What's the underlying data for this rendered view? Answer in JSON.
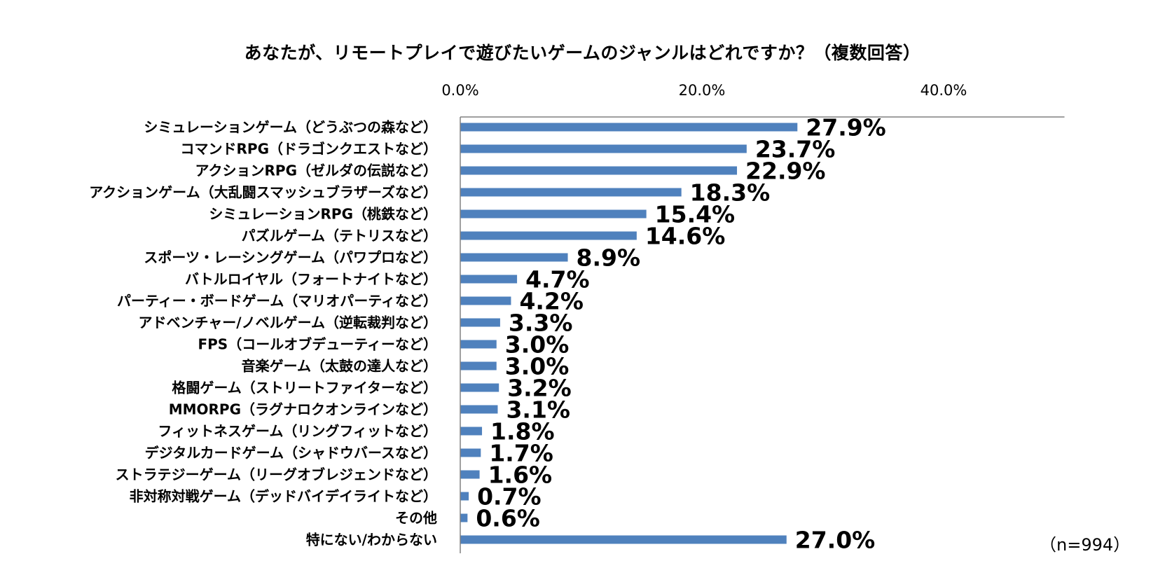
{
  "chart_data": {
    "type": "bar",
    "orientation": "horizontal",
    "title": "あなたが、リモートプレイで遊びたいゲームのジャンルはどれですか？（複数回答）",
    "xlim": [
      0,
      50
    ],
    "x_ticks": [
      0,
      20,
      40
    ],
    "x_tick_labels": [
      "0.0%",
      "20.0%",
      "40.0%"
    ],
    "categories": [
      "シミュレーションゲーム（どうぶつの森など）",
      "コマンドRPG（ドラゴンクエストなど）",
      "アクションRPG（ゼルダの伝説など）",
      "アクションゲーム（大乱闘スマッシュブラザーズなど）",
      "シミュレーションRPG（桃鉄など）",
      "パズルゲーム（テトリスなど）",
      "スポーツ・レーシングゲーム（パワプロなど）",
      "バトルロイヤル（フォートナイトなど）",
      "パーティー・ボードゲーム（マリオパーティなど）",
      "アドベンチャー/ノベルゲーム（逆転裁判など）",
      "FPS（コールオブデューティーなど）",
      "音楽ゲーム（太鼓の達人など）",
      "格闘ゲーム（ストリートファイターなど）",
      "MMORPG（ラグナロクオンラインなど）",
      "フィットネスゲーム（リングフィットなど）",
      "デジタルカードゲーム（シャドウバースなど）",
      "ストラテジーゲーム（リーグオブレジェンドなど）",
      "非対称対戦ゲーム（デッドバイデイライトなど）",
      "その他",
      "特にない/わからない"
    ],
    "values": [
      27.9,
      23.7,
      22.9,
      18.3,
      15.4,
      14.6,
      8.9,
      4.7,
      4.2,
      3.3,
      3.0,
      3.0,
      3.2,
      3.1,
      1.8,
      1.7,
      1.6,
      0.7,
      0.6,
      27.0
    ],
    "value_labels": [
      "27.9%",
      "23.7%",
      "22.9%",
      "18.3%",
      "15.4%",
      "14.6%",
      "8.9%",
      "4.7%",
      "4.2%",
      "3.3%",
      "3.0%",
      "3.0%",
      "3.2%",
      "3.1%",
      "1.8%",
      "1.7%",
      "1.6%",
      "0.7%",
      "0.6%",
      "27.0%"
    ],
    "bar_color": "#4f81bd",
    "axis_color": "#808080",
    "note": "（n=994）"
  }
}
